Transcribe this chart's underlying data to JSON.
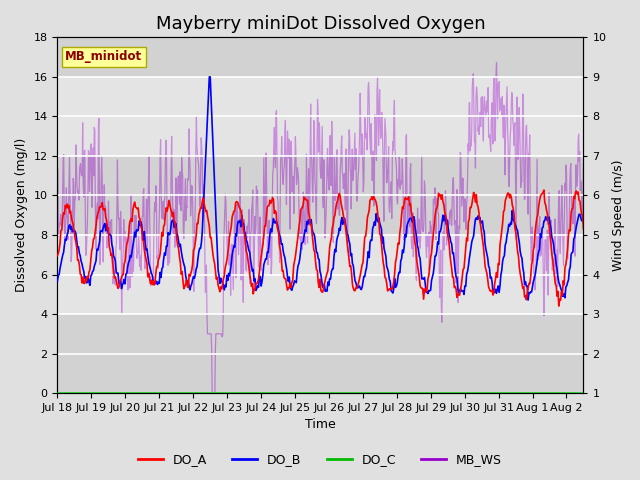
{
  "title": "Mayberry miniDot Dissolved Oxygen",
  "xlabel": "Time",
  "ylabel_left": "Dissolved Oxygen (mg/l)",
  "ylabel_right": "Wind Speed (m/s)",
  "ylim_left": [
    0,
    18
  ],
  "ylim_right": [
    1.0,
    10.0
  ],
  "yticks_left": [
    0,
    2,
    4,
    6,
    8,
    10,
    12,
    14,
    16,
    18
  ],
  "yticks_right": [
    1.0,
    2.0,
    3.0,
    4.0,
    5.0,
    6.0,
    7.0,
    8.0,
    9.0,
    10.0
  ],
  "xlim": [
    0,
    15.5
  ],
  "xtick_labels": [
    "Jul 18",
    "Jul 19",
    "Jul 20",
    "Jul 21",
    "Jul 22",
    "Jul 23",
    "Jul 24",
    "Jul 25",
    "Jul 26",
    "Jul 27",
    "Jul 28",
    "Jul 29",
    "Jul 30",
    "Jul 31",
    "Aug 1",
    "Aug 2"
  ],
  "xtick_positions": [
    0,
    1,
    2,
    3,
    4,
    5,
    6,
    7,
    8,
    9,
    10,
    11,
    12,
    13,
    14,
    15
  ],
  "bg_color": "#e0e0e0",
  "plot_bg_color": "#f2f2f2",
  "band_dark": "#d8d8d8",
  "band_light": "#ebebeb",
  "label_box_color": "#ffff99",
  "label_box_text": "MB_minidot",
  "label_box_text_color": "#8b0000",
  "legend_entries": [
    "DO_A",
    "DO_B",
    "DO_C",
    "MB_WS"
  ],
  "line_colors": [
    "#ff0000",
    "#0000ff",
    "#00bb00",
    "#9900cc"
  ],
  "do_a_lw": 1.2,
  "do_b_lw": 1.2,
  "ws_lw": 0.9,
  "title_fontsize": 13,
  "axis_label_fontsize": 9,
  "tick_fontsize": 8,
  "legend_fontsize": 9
}
